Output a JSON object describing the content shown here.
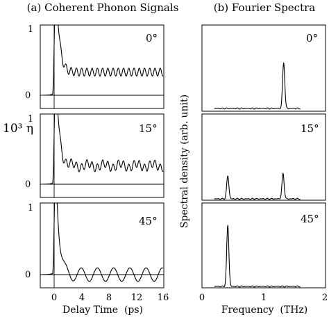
{
  "left_title": "(a) Coherent Phonon Signals",
  "right_title": "(b) Fourier Spectra",
  "left_ylabel": "10³ η",
  "right_ylabel": "Spectral density (arb. unit)",
  "chart_data": [
    {
      "type": "line",
      "title": "(a) Coherent Phonon Signals",
      "xlabel": "Delay Time  (ps)",
      "ylabel": "10³ η",
      "xlim": [
        -2,
        16
      ],
      "ylim": [
        -0.1,
        1.1
      ],
      "xticks": [
        "0",
        "4",
        "8",
        "12",
        "16"
      ],
      "panels": [
        {
          "angle": "0°",
          "yticks": [
            "0",
            "1"
          ],
          "baseline": 0.35,
          "amplitude": 0.06,
          "freq_thz": 1.3,
          "peak": 1.0
        },
        {
          "angle": "15°",
          "yticks": [
            "0",
            "1"
          ],
          "baseline": 0.28,
          "amplitude": 0.06,
          "freq_thz": 1.3,
          "secondary_freq_thz": 0.42,
          "peak": 1.0
        },
        {
          "angle": "45°",
          "yticks": [
            "0",
            "1"
          ],
          "baseline": 0.0,
          "amplitude": 0.1,
          "freq_thz": 0.42,
          "peak": 1.0
        }
      ]
    },
    {
      "type": "line",
      "title": "(b) Fourier Spectra",
      "xlabel": "Frequency  (THz)",
      "ylabel": "Spectral density (arb. unit)",
      "xlim": [
        0,
        2
      ],
      "xticks": [
        "0",
        "1",
        "2"
      ],
      "panels": [
        {
          "angle": "0°",
          "peaks": [
            {
              "freq_thz": 1.33,
              "height": 0.6
            }
          ]
        },
        {
          "angle": "15°",
          "peaks": [
            {
              "freq_thz": 0.42,
              "height": 0.3
            },
            {
              "freq_thz": 1.32,
              "height": 0.33
            }
          ]
        },
        {
          "angle": "45°",
          "peaks": [
            {
              "freq_thz": 0.42,
              "height": 0.8
            }
          ]
        }
      ]
    }
  ]
}
